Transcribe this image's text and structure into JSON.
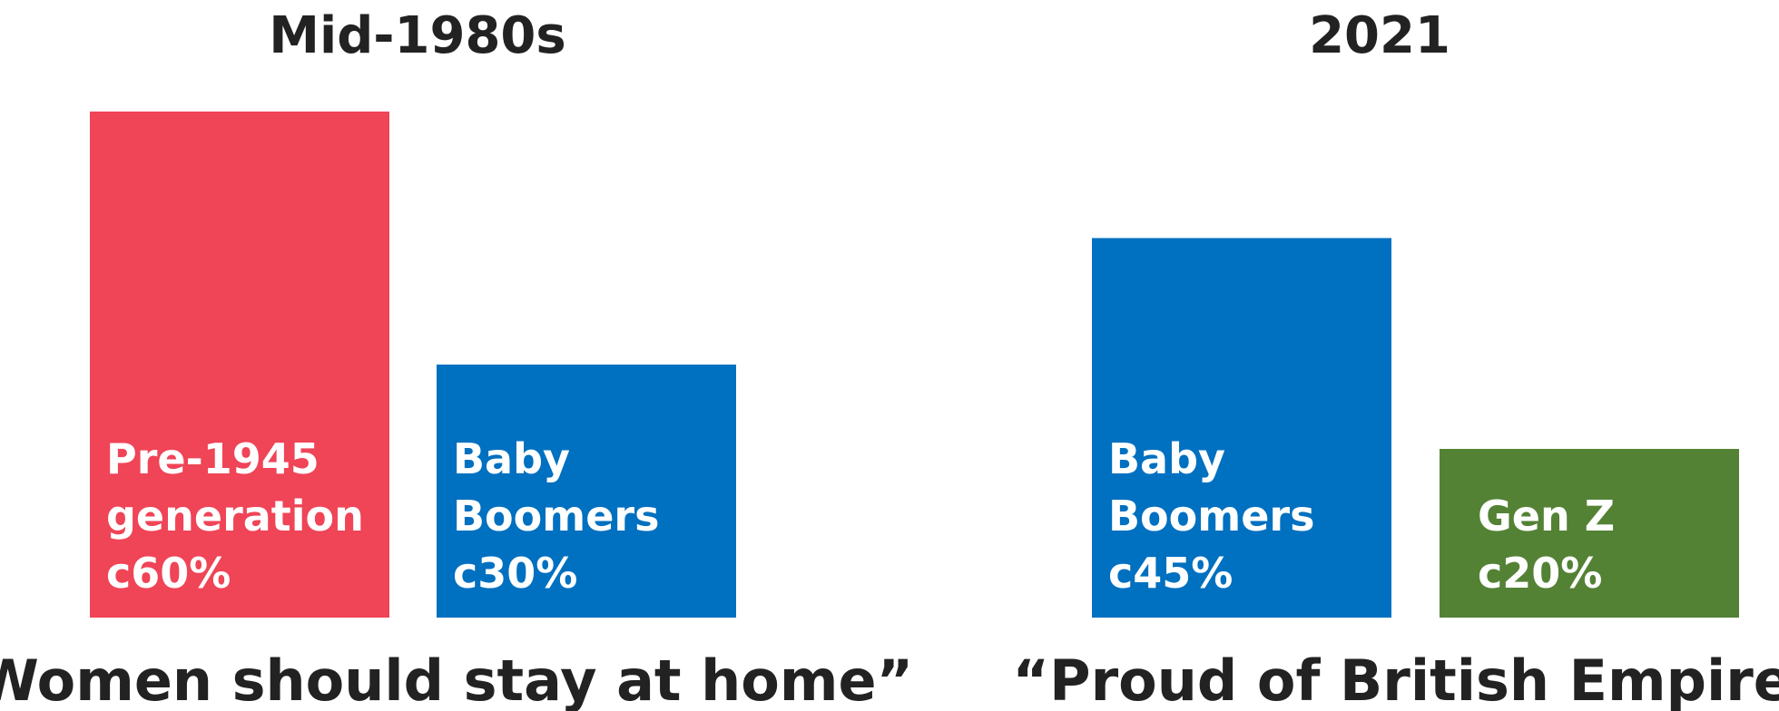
{
  "chart_data": [
    {
      "type": "bar",
      "title": "Mid-1980s",
      "caption": "“Women should stay at home”",
      "ylim": [
        0,
        60
      ],
      "bars": [
        {
          "label_lines": [
            "Pre-1945",
            "generation"
          ],
          "value": 60,
          "value_label": "c60%",
          "color": "#f04457"
        },
        {
          "label_lines": [
            "Baby",
            "Boomers"
          ],
          "value": 30,
          "value_label": "c30%",
          "color": "#0070c0"
        }
      ]
    },
    {
      "type": "bar",
      "title": "2021",
      "caption": "“Proud of British Empire”",
      "ylim": [
        0,
        60
      ],
      "bars": [
        {
          "label_lines": [
            "Baby",
            "Boomers"
          ],
          "value": 45,
          "value_label": "c45%",
          "color": "#0070c0"
        },
        {
          "label_lines": [
            "Gen Z"
          ],
          "value": 20,
          "value_label": "c20%",
          "color": "#548235"
        }
      ]
    }
  ]
}
